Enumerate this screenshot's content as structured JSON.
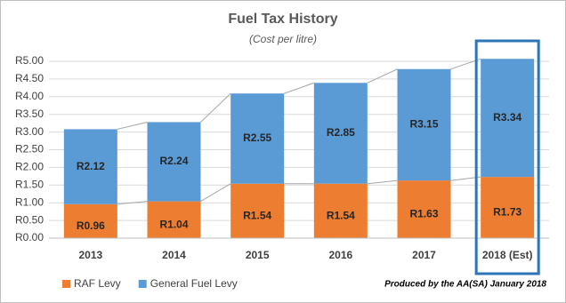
{
  "chart_data": {
    "type": "stacked_bar",
    "title": "Fuel Tax History",
    "subtitle": "(Cost per litre)",
    "note": "Produced by the AA(SA) January 2018",
    "categories": [
      "2013",
      "2014",
      "2015",
      "2016",
      "2017",
      "2018 (Est)"
    ],
    "series": [
      {
        "name": "RAF Levy",
        "color": "#ed7d31",
        "values": [
          0.96,
          1.04,
          1.54,
          1.54,
          1.63,
          1.73
        ],
        "value_labels": [
          "R0.96",
          "R1.04",
          "R1.54",
          "R1.54",
          "R1.63",
          "R1.73"
        ]
      },
      {
        "name": "General Fuel Levy",
        "color": "#5b9bd5",
        "values": [
          2.12,
          2.24,
          2.55,
          2.85,
          3.15,
          3.34
        ],
        "value_labels": [
          "R2.12",
          "R2.24",
          "R2.55",
          "R2.85",
          "R3.15",
          "R3.34"
        ]
      }
    ],
    "ylim": [
      0,
      5
    ],
    "yticks": [
      {
        "value": 0,
        "label": "R0.00"
      },
      {
        "value": 0.5,
        "label": "R0.50"
      },
      {
        "value": 1,
        "label": "R1.00"
      },
      {
        "value": 1.5,
        "label": "R1.50"
      },
      {
        "value": 2,
        "label": "R2.00"
      },
      {
        "value": 2.5,
        "label": "R2.50"
      },
      {
        "value": 3,
        "label": "R3.00"
      },
      {
        "value": 3.5,
        "label": "R3.50"
      },
      {
        "value": 4,
        "label": "R4.00"
      },
      {
        "value": 4.5,
        "label": "R4.50"
      },
      {
        "value": 5,
        "label": "R5.00"
      }
    ],
    "grid": true,
    "legend": "bottom-left",
    "highlight_color": "#2e75b6"
  }
}
